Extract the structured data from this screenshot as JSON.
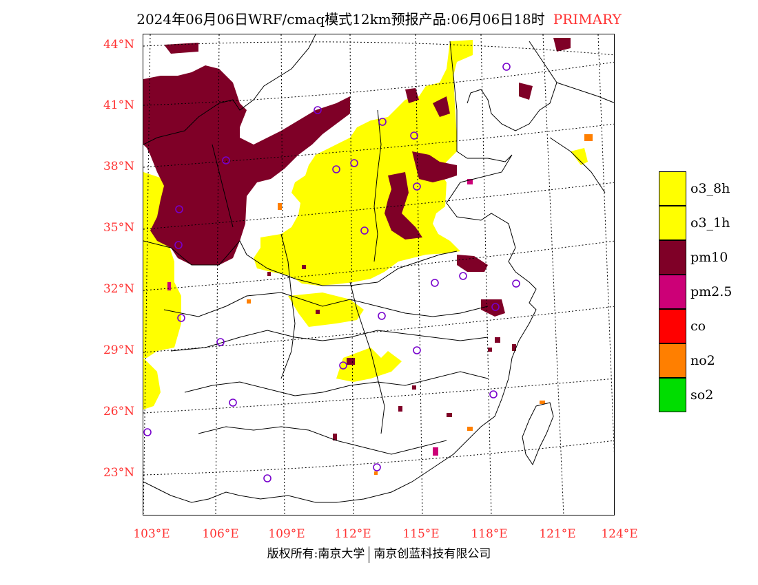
{
  "title": {
    "main": "2024年06月06日WRF/cmaq模式12km预报产品:06月06日18时",
    "tag": "PRIMARY"
  },
  "lat_labels": [
    "44°N",
    "41°N",
    "38°N",
    "35°N",
    "32°N",
    "29°N",
    "26°N",
    "23°N"
  ],
  "lon_labels": [
    "103°E",
    "106°E",
    "109°E",
    "112°E",
    "115°E",
    "118°E",
    "121°E",
    "124°E"
  ],
  "legend": [
    {
      "label": "o3_8h",
      "color": "#ffff00"
    },
    {
      "label": "o3_1h",
      "color": "#ffff00"
    },
    {
      "label": "pm10",
      "color": "#7f0027"
    },
    {
      "label": "pm2.5",
      "color": "#cc0077"
    },
    {
      "label": "co",
      "color": "#ff0000"
    },
    {
      "label": "no2",
      "color": "#ff7f00"
    },
    {
      "label": "so2",
      "color": "#00dd00"
    }
  ],
  "footer": {
    "left": "版权所有:南京大学",
    "right": "南京创蓝科技有限公司"
  }
}
